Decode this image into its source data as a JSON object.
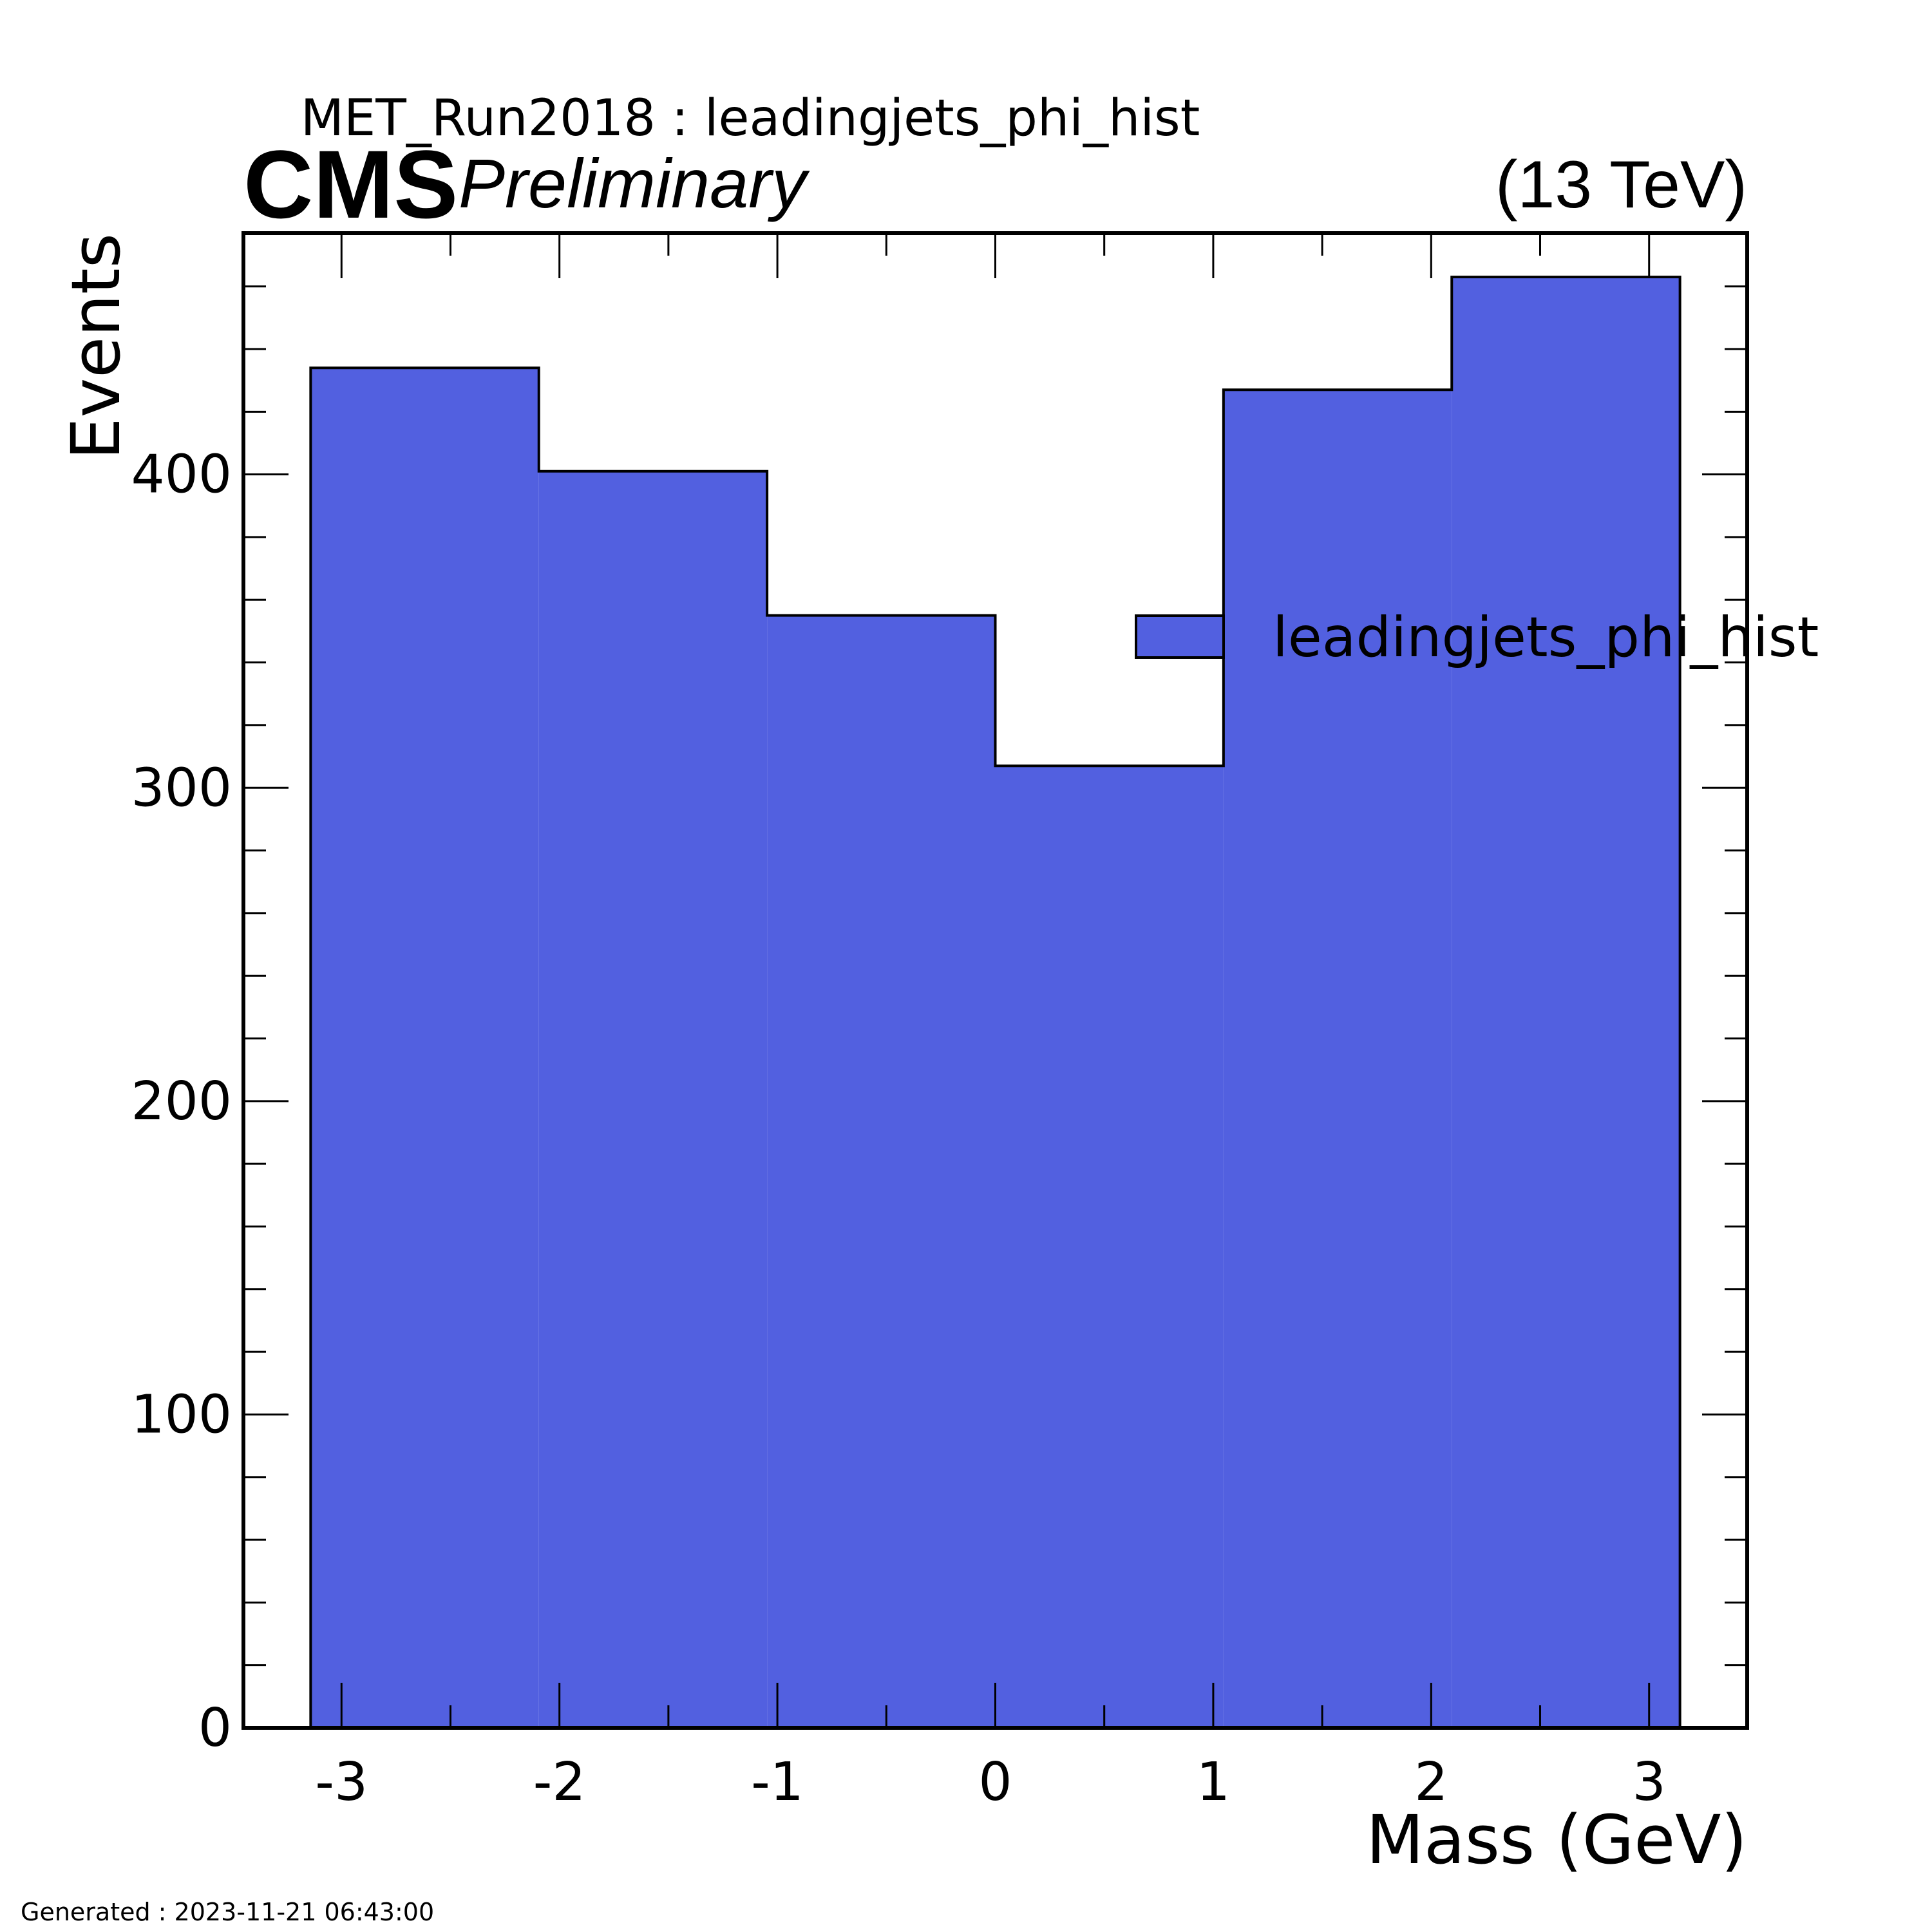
{
  "header": {
    "experiment": "CMS",
    "status": "Preliminary",
    "energy": "(13 TeV)",
    "title": "MET_Run2018 : leadingjets_phi_hist"
  },
  "footer": {
    "generated": "Generated : 2023-11-21 06:43:00"
  },
  "colors": {
    "fill": "#5260e0",
    "edge": "#000000"
  },
  "chart_data": {
    "type": "bar",
    "histogram": true,
    "title": "MET_Run2018 : leadingjets_phi_hist",
    "xlabel": "Mass (GeV)",
    "ylabel": "Events",
    "xlim": [
      -3.45,
      3.45
    ],
    "ylim": [
      0,
      477
    ],
    "x_ticks": [
      -3,
      -2,
      -1,
      0,
      1,
      2,
      3
    ],
    "x_tick_labels": [
      "-3",
      "-2",
      "-1",
      "0",
      "1",
      "2",
      "3"
    ],
    "y_ticks": [
      0,
      100,
      200,
      300,
      400
    ],
    "y_tick_labels": [
      "0",
      "100",
      "200",
      "300",
      "400"
    ],
    "bin_edges": [
      -3.1416,
      -2.0944,
      -1.0472,
      0.0,
      1.0472,
      2.0944,
      3.1416
    ],
    "series": [
      {
        "name": "leadingjets_phi_hist",
        "values": [
          434,
          401,
          355,
          307,
          427,
          463
        ]
      }
    ],
    "legend": "upper-right",
    "grid": false
  }
}
